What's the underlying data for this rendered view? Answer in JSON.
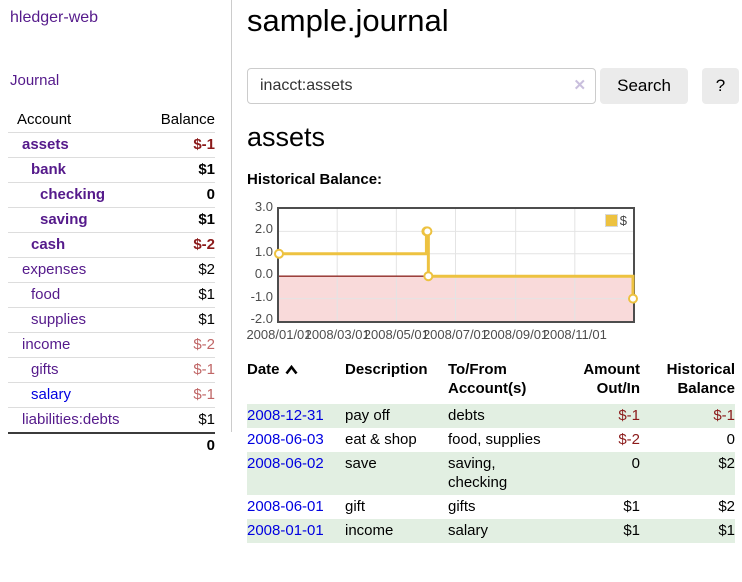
{
  "app": {
    "brand": "hledger-web",
    "nav_journal": "Journal"
  },
  "sidebar": {
    "header": {
      "account": "Account",
      "balance": "Balance"
    },
    "accounts": [
      {
        "name": "assets",
        "depth": 1,
        "bold": true,
        "balance": "$-1",
        "balance_style": "neg-strong",
        "link_color": "purple"
      },
      {
        "name": "bank",
        "depth": 2,
        "bold": true,
        "balance": "$1",
        "balance_style": "plain",
        "link_color": "purple"
      },
      {
        "name": "checking",
        "depth": 3,
        "bold": true,
        "balance": "0",
        "balance_style": "plain",
        "link_color": "purple"
      },
      {
        "name": "saving",
        "depth": 3,
        "bold": true,
        "balance": "$1",
        "balance_style": "plain",
        "link_color": "purple"
      },
      {
        "name": "cash",
        "depth": 2,
        "bold": true,
        "balance": "$-2",
        "balance_style": "neg-strong",
        "link_color": "purple"
      },
      {
        "name": "expenses",
        "depth": 1,
        "bold": false,
        "balance": "$2",
        "balance_style": "plain",
        "link_color": "purple"
      },
      {
        "name": "food",
        "depth": 2,
        "bold": false,
        "balance": "$1",
        "balance_style": "plain",
        "link_color": "purple"
      },
      {
        "name": "supplies",
        "depth": 2,
        "bold": false,
        "balance": "$1",
        "balance_style": "plain",
        "link_color": "purple"
      },
      {
        "name": "income",
        "depth": 1,
        "bold": false,
        "balance": "$-2",
        "balance_style": "neg-soft",
        "link_color": "purple"
      },
      {
        "name": "gifts",
        "depth": 2,
        "bold": false,
        "balance": "$-1",
        "balance_style": "neg-soft",
        "link_color": "purple"
      },
      {
        "name": "salary",
        "depth": 2,
        "bold": false,
        "balance": "$-1",
        "balance_style": "neg-soft",
        "link_color": "blue"
      },
      {
        "name": "liabilities:debts",
        "depth": 1,
        "bold": false,
        "balance": "$1",
        "balance_style": "plain",
        "link_color": "purple"
      }
    ],
    "total": "0"
  },
  "main": {
    "title": "sample.journal",
    "search": {
      "value": "inacct:assets",
      "clear_icon": "✕",
      "search_button": "Search",
      "help_button": "?"
    },
    "account_heading": "assets",
    "chart_label": "Historical Balance:"
  },
  "chart_data": {
    "type": "line",
    "step": true,
    "title": "Historical Balance:",
    "series": [
      {
        "name": "$",
        "x": [
          "2008-01-01",
          "2008-06-01",
          "2008-06-02",
          "2008-06-03",
          "2008-12-31"
        ],
        "values": [
          1,
          2,
          2,
          0,
          -1
        ]
      }
    ],
    "xlim": [
      "2008-01-01",
      "2008-12-31"
    ],
    "ylim": [
      -2,
      3
    ],
    "x_ticks": [
      "2008-01-01",
      "2008-03-01",
      "2008-05-01",
      "2008-07-01",
      "2008-09-01",
      "2008-11-01"
    ],
    "x_tick_labels": [
      "2008/01/01",
      "2008/03/01",
      "2008/05/01",
      "2008/07/01",
      "2008/09/01",
      "2008/11/01"
    ],
    "y_ticks": [
      3,
      2,
      1,
      0,
      -1,
      -2
    ],
    "y_tick_labels": [
      "3.0",
      "2.0",
      "1.0",
      "0.0",
      "-1.0",
      "-2.0"
    ],
    "legend": {
      "position": "top-right",
      "label": "$"
    },
    "grid": true,
    "colors": {
      "line": "#edc240",
      "marker_fill": "#ffffff",
      "negative_region": "#f9dada",
      "zero_line": "#8f2a25",
      "grid": "#e4e4e4",
      "border": "#4d4d4d"
    }
  },
  "register": {
    "columns": [
      "Date",
      "Description",
      "To/From Account(s)",
      "Amount Out/In",
      "Historical Balance"
    ],
    "sort": {
      "column": "Date",
      "direction": "ascending"
    },
    "rows": [
      {
        "date": "2008-12-31",
        "description": "pay off",
        "accounts": "debts",
        "amount": "$-1",
        "amount_neg": true,
        "balance": "$-1",
        "balance_neg": true
      },
      {
        "date": "2008-06-03",
        "description": "eat & shop",
        "accounts": "food, supplies",
        "amount": "$-2",
        "amount_neg": true,
        "balance": "0",
        "balance_neg": false
      },
      {
        "date": "2008-06-02",
        "description": "save",
        "accounts": "saving, checking",
        "amount": "0",
        "amount_neg": false,
        "balance": "$2",
        "balance_neg": false
      },
      {
        "date": "2008-06-01",
        "description": "gift",
        "accounts": "gifts",
        "amount": "$1",
        "amount_neg": false,
        "balance": "$2",
        "balance_neg": false
      },
      {
        "date": "2008-01-01",
        "description": "income",
        "accounts": "salary",
        "amount": "$1",
        "amount_neg": false,
        "balance": "$1",
        "balance_neg": false
      }
    ]
  }
}
